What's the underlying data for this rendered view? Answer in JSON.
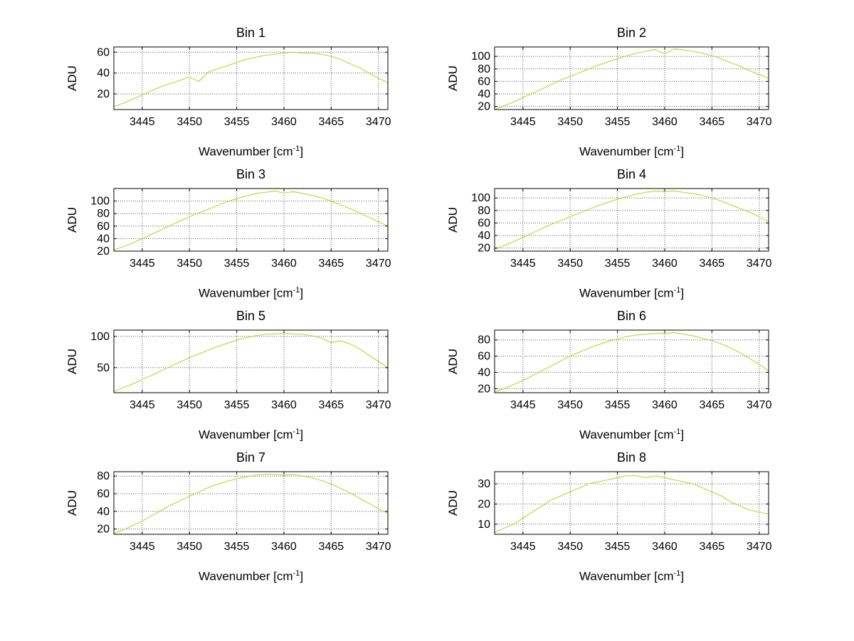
{
  "figure": {
    "background": "#ffffff",
    "line_color": "#b9dc41",
    "grid_color": "#555555",
    "axis_color": "#000000",
    "text_color": "#000000",
    "grid": "on",
    "layout": "4x2 subplots"
  },
  "axis_labels": {
    "ylabel": "ADU",
    "xlabel_prefix": "Wavenumber [cm",
    "xlabel_sup": "-1",
    "xlabel_suffix": "]"
  },
  "chart_data": [
    {
      "type": "line",
      "title": "Bin 1",
      "xlabel": "Wavenumber [cm^-1]",
      "ylabel": "ADU",
      "xlim": [
        3442,
        3471
      ],
      "ylim": [
        5,
        65
      ],
      "xticks": [
        3445,
        3450,
        3455,
        3460,
        3465,
        3470
      ],
      "yticks": [
        20,
        40,
        60
      ],
      "x": [
        3442,
        3443,
        3444,
        3445,
        3446,
        3447,
        3448,
        3449,
        3450,
        3451,
        3452,
        3453,
        3454,
        3455,
        3456,
        3457,
        3458,
        3459,
        3460,
        3461,
        3462,
        3463,
        3464,
        3465,
        3466,
        3467,
        3468,
        3469,
        3470,
        3471
      ],
      "y": [
        8,
        11,
        15,
        19,
        23,
        27,
        30,
        33,
        36,
        32,
        41,
        44,
        47,
        50,
        53,
        55,
        57,
        58,
        59,
        60,
        59,
        59,
        58,
        56,
        53,
        49,
        45,
        40,
        35,
        31
      ]
    },
    {
      "type": "line",
      "title": "Bin 2",
      "xlabel": "Wavenumber [cm^-1]",
      "ylabel": "ADU",
      "xlim": [
        3442,
        3471
      ],
      "ylim": [
        15,
        115
      ],
      "xticks": [
        3445,
        3450,
        3455,
        3460,
        3465,
        3470
      ],
      "yticks": [
        20,
        40,
        60,
        80,
        100
      ],
      "x": [
        3442,
        3443,
        3444,
        3445,
        3446,
        3447,
        3448,
        3449,
        3450,
        3451,
        3452,
        3453,
        3454,
        3455,
        3456,
        3457,
        3458,
        3459,
        3460,
        3461,
        3462,
        3463,
        3464,
        3465,
        3466,
        3467,
        3468,
        3469,
        3470,
        3471
      ],
      "y": [
        15,
        21,
        27,
        34,
        41,
        48,
        55,
        62,
        68,
        74,
        80,
        86,
        91,
        96,
        101,
        105,
        108,
        111,
        104,
        112,
        110,
        108,
        105,
        101,
        96,
        90,
        84,
        77,
        71,
        65
      ]
    },
    {
      "type": "line",
      "title": "Bin 3",
      "xlabel": "Wavenumber [cm^-1]",
      "ylabel": "ADU",
      "xlim": [
        3442,
        3471
      ],
      "ylim": [
        20,
        120
      ],
      "xticks": [
        3445,
        3450,
        3455,
        3460,
        3465,
        3470
      ],
      "yticks": [
        20,
        40,
        60,
        80,
        100
      ],
      "x": [
        3442,
        3443,
        3444,
        3445,
        3446,
        3447,
        3448,
        3449,
        3450,
        3451,
        3452,
        3453,
        3454,
        3455,
        3456,
        3457,
        3458,
        3459,
        3460,
        3461,
        3462,
        3463,
        3464,
        3465,
        3466,
        3467,
        3468,
        3469,
        3470,
        3471
      ],
      "y": [
        22,
        27,
        33,
        40,
        47,
        54,
        61,
        68,
        75,
        81,
        87,
        93,
        99,
        104,
        108,
        112,
        114,
        116,
        113,
        115,
        112,
        109,
        105,
        100,
        94,
        88,
        81,
        74,
        67,
        60
      ]
    },
    {
      "type": "line",
      "title": "Bin 4",
      "xlabel": "Wavenumber [cm^-1]",
      "ylabel": "ADU",
      "xlim": [
        3442,
        3471
      ],
      "ylim": [
        15,
        115
      ],
      "xticks": [
        3445,
        3450,
        3455,
        3460,
        3465,
        3470
      ],
      "yticks": [
        20,
        40,
        60,
        80,
        100
      ],
      "x": [
        3442,
        3443,
        3444,
        3445,
        3446,
        3447,
        3448,
        3449,
        3450,
        3451,
        3452,
        3453,
        3454,
        3455,
        3456,
        3457,
        3458,
        3459,
        3460,
        3461,
        3462,
        3463,
        3464,
        3465,
        3466,
        3467,
        3468,
        3469,
        3470,
        3471
      ],
      "y": [
        18,
        24,
        30,
        37,
        44,
        51,
        58,
        64,
        70,
        76,
        82,
        88,
        93,
        98,
        102,
        106,
        109,
        111,
        110,
        111,
        109,
        107,
        104,
        100,
        95,
        89,
        83,
        77,
        70,
        62
      ]
    },
    {
      "type": "line",
      "title": "Bin 5",
      "xlabel": "Wavenumber [cm^-1]",
      "ylabel": "ADU",
      "xlim": [
        3442,
        3471
      ],
      "ylim": [
        10,
        110
      ],
      "xticks": [
        3445,
        3450,
        3455,
        3460,
        3465,
        3470
      ],
      "yticks": [
        50,
        100
      ],
      "x": [
        3442,
        3443,
        3444,
        3445,
        3446,
        3447,
        3448,
        3449,
        3450,
        3451,
        3452,
        3453,
        3454,
        3455,
        3456,
        3457,
        3458,
        3459,
        3460,
        3461,
        3462,
        3463,
        3464,
        3465,
        3466,
        3467,
        3468,
        3469,
        3470,
        3471
      ],
      "y": [
        12,
        18,
        24,
        31,
        38,
        45,
        52,
        59,
        66,
        72,
        78,
        84,
        89,
        94,
        98,
        101,
        103,
        104,
        105,
        104,
        103,
        101,
        97,
        90,
        93,
        88,
        80,
        70,
        60,
        50
      ]
    },
    {
      "type": "line",
      "title": "Bin 6",
      "xlabel": "Wavenumber [cm^-1]",
      "ylabel": "ADU",
      "xlim": [
        3442,
        3471
      ],
      "ylim": [
        15,
        92
      ],
      "xticks": [
        3445,
        3450,
        3455,
        3460,
        3465,
        3470
      ],
      "yticks": [
        20,
        40,
        60,
        80
      ],
      "x": [
        3442,
        3443,
        3444,
        3445,
        3446,
        3447,
        3448,
        3449,
        3450,
        3451,
        3452,
        3453,
        3454,
        3455,
        3456,
        3457,
        3458,
        3459,
        3460,
        3461,
        3462,
        3463,
        3464,
        3465,
        3466,
        3467,
        3468,
        3469,
        3470,
        3471
      ],
      "y": [
        16,
        20,
        25,
        30,
        36,
        42,
        48,
        54,
        60,
        65,
        70,
        74,
        78,
        81,
        84,
        86,
        87,
        88,
        88,
        89,
        87,
        85,
        82,
        79,
        75,
        70,
        64,
        57,
        50,
        42
      ]
    },
    {
      "type": "line",
      "title": "Bin 7",
      "xlabel": "Wavenumber [cm^-1]",
      "ylabel": "ADU",
      "xlim": [
        3442,
        3471
      ],
      "ylim": [
        14,
        85
      ],
      "xticks": [
        3445,
        3450,
        3455,
        3460,
        3465,
        3470
      ],
      "yticks": [
        20,
        40,
        60,
        80
      ],
      "x": [
        3442,
        3443,
        3444,
        3445,
        3446,
        3447,
        3448,
        3449,
        3450,
        3451,
        3452,
        3453,
        3454,
        3455,
        3456,
        3457,
        3458,
        3459,
        3460,
        3461,
        3462,
        3463,
        3464,
        3465,
        3466,
        3467,
        3468,
        3469,
        3470,
        3471
      ],
      "y": [
        15,
        19,
        24,
        29,
        35,
        41,
        47,
        52,
        57,
        62,
        67,
        71,
        74,
        77,
        79,
        81,
        82,
        82,
        81,
        82,
        80,
        78,
        75,
        71,
        66,
        61,
        55,
        49,
        43,
        38
      ]
    },
    {
      "type": "line",
      "title": "Bin 8",
      "xlabel": "Wavenumber [cm^-1]",
      "ylabel": "ADU",
      "xlim": [
        3442,
        3471
      ],
      "ylim": [
        5,
        36
      ],
      "xticks": [
        3445,
        3450,
        3455,
        3460,
        3465,
        3470
      ],
      "yticks": [
        10,
        20,
        30
      ],
      "x": [
        3442,
        3443,
        3444,
        3445,
        3446,
        3447,
        3448,
        3449,
        3450,
        3451,
        3452,
        3453,
        3454,
        3455,
        3456,
        3457,
        3458,
        3459,
        3460,
        3461,
        3462,
        3463,
        3464,
        3465,
        3466,
        3467,
        3468,
        3469,
        3470,
        3471
      ],
      "y": [
        6,
        8,
        10,
        13,
        16,
        19,
        22,
        24,
        26,
        28,
        30,
        31,
        32,
        33,
        34,
        34,
        33,
        34,
        33,
        32,
        31,
        30,
        28,
        26,
        24,
        21,
        19,
        17,
        16,
        15
      ]
    }
  ]
}
